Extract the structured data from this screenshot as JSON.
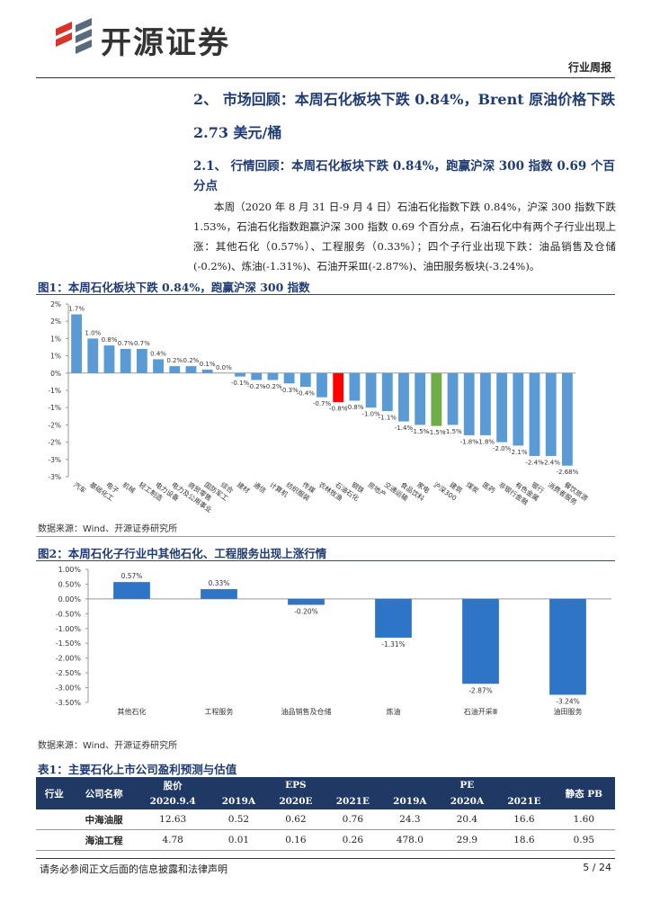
{
  "header": {
    "brand": "开源证券",
    "doc_type": "行业周报"
  },
  "section": {
    "heading": "2、 市场回顾：本周石化板块下跌 0.84%，Brent 原油价格下跌 2.73 美元/桶",
    "subheading": "2.1、 行情回顾：本周石化板块下跌 0.84%，跑赢沪深 300 指数 0.69 个百分点",
    "paragraph": "本周（2020 年 8 月 31 日-9 月 4 日）石油石化指数下跌 0.84%，沪深 300 指数下跌 1.53%，石油石化指数跑赢沪深 300 指数 0.69 个百分点，石油石化中有两个子行业出现上涨：其他石化（0.57%）、工程服务（0.33%）；四个子行业出现下跌：油品销售及仓储(-0.2%)、炼油(-1.31%)、石油开采Ⅲ(-2.87%)、油田服务板块(-3.24%)。"
  },
  "chart_data": [
    {
      "type": "bar",
      "title": "图1：本周石化板块下跌 0.84%，跑赢沪深 300 指数",
      "source": "数据来源：Wind、开源证券研究所",
      "categories": [
        "汽车",
        "基础化工",
        "电子",
        "机械",
        "轻工制造",
        "电力设备",
        "电力及公用事业",
        "商贸零售",
        "国防军工",
        "综合",
        "建材",
        "通信",
        "计算机",
        "纺织服装",
        "传媒",
        "农林牧渔",
        "石油石化",
        "钢铁",
        "房地产",
        "交通运输",
        "食品饮料",
        "家电",
        "沪深300",
        "建筑",
        "煤炭",
        "医药",
        "非银行金融",
        "有色金属",
        "银行",
        "消费者服务",
        "餐饮旅游"
      ],
      "values": [
        1.7,
        1.0,
        0.8,
        0.7,
        0.7,
        0.4,
        0.2,
        0.2,
        0.1,
        0.0,
        -0.1,
        -0.2,
        -0.2,
        -0.3,
        -0.4,
        -0.7,
        -0.84,
        -0.8,
        -1.0,
        -1.1,
        -1.4,
        -1.5,
        -1.53,
        -1.5,
        -1.8,
        -1.8,
        -2.0,
        -2.1,
        -2.4,
        -2.4,
        -2.68
      ],
      "value_labels": [
        "1.7%",
        "1.0%",
        "0.8%",
        "0.7%",
        "0.7%",
        "0.4%",
        "0.2%",
        "0.2%",
        "0.1%",
        "0.0%",
        "-0.1%",
        "-0.2%",
        "-0.2%",
        "-0.3%",
        "-0.4%",
        "-0.7%",
        "-0.8%",
        "-0.8%",
        "-1.0%",
        "-1.1%",
        "-1.4%",
        "-1.5%",
        "-1.5%",
        "-1.5%",
        "-1.8%",
        "-1.8%",
        "-2.0%",
        "-2.1%",
        "-2.4%",
        "-2.4%",
        "-2.68%"
      ],
      "colors": [
        "#5b9bd5",
        "#5b9bd5",
        "#5b9bd5",
        "#5b9bd5",
        "#5b9bd5",
        "#5b9bd5",
        "#5b9bd5",
        "#5b9bd5",
        "#5b9bd5",
        "#5b9bd5",
        "#5b9bd5",
        "#5b9bd5",
        "#5b9bd5",
        "#5b9bd5",
        "#5b9bd5",
        "#5b9bd5",
        "#ff0000",
        "#5b9bd5",
        "#5b9bd5",
        "#5b9bd5",
        "#5b9bd5",
        "#5b9bd5",
        "#70ad47",
        "#5b9bd5",
        "#5b9bd5",
        "#5b9bd5",
        "#5b9bd5",
        "#5b9bd5",
        "#5b9bd5",
        "#5b9bd5",
        "#5b9bd5"
      ],
      "ylim": [
        -3,
        2
      ],
      "yticks": [
        {
          "value": 2,
          "label": "2%"
        },
        {
          "value": 1.5,
          "label": "2%"
        },
        {
          "value": 1,
          "label": "1%"
        },
        {
          "value": 0.5,
          "label": "1%"
        },
        {
          "value": 0,
          "label": "0%"
        },
        {
          "value": -0.5,
          "label": "-1%"
        },
        {
          "value": -1,
          "label": "-1%"
        },
        {
          "value": -1.5,
          "label": "-2%"
        },
        {
          "value": -2,
          "label": "-2%"
        },
        {
          "value": -2.5,
          "label": "-3%"
        },
        {
          "value": -3,
          "label": "-3%"
        }
      ],
      "grid": false
    },
    {
      "type": "bar",
      "title": "图2：本周石化子行业中其他石化、工程服务出现上涨行情",
      "source": "数据来源：Wind、开源证券研究所",
      "categories": [
        "其他石化",
        "工程服务",
        "油品销售及仓储",
        "炼油",
        "石油开采Ⅲ",
        "油田服务"
      ],
      "values": [
        0.57,
        0.33,
        -0.2,
        -1.31,
        -2.87,
        -3.24
      ],
      "value_labels": [
        "0.57%",
        "0.33%",
        "-0.20%",
        "-1.31%",
        "-2.87%",
        "-3.24%"
      ],
      "color": "#2e75c8",
      "ylim": [
        -3.5,
        1
      ],
      "yticks": [
        {
          "value": 1,
          "label": "1.00%"
        },
        {
          "value": 0.5,
          "label": "0.50%"
        },
        {
          "value": 0,
          "label": "0.00%"
        },
        {
          "value": -0.5,
          "label": "-0.50%"
        },
        {
          "value": -1,
          "label": "-1.00%"
        },
        {
          "value": -1.5,
          "label": "-1.50%"
        },
        {
          "value": -2,
          "label": "-2.00%"
        },
        {
          "value": -2.5,
          "label": "-2.50%"
        },
        {
          "value": -3,
          "label": "-3.00%"
        },
        {
          "value": -3.5,
          "label": "-3.50%"
        }
      ],
      "grid": false
    }
  ],
  "table": {
    "title": "表1：主要石化上市公司盈利预测与估值",
    "header": [
      "行业",
      "公司名称",
      "股价",
      "EPS",
      "PE",
      "静态 PB"
    ],
    "subheader": [
      "2020.9.4",
      "2019A",
      "2020E",
      "2021E",
      "2019A",
      "2020A",
      "2021E"
    ],
    "rows": [
      [
        "中海油服",
        "12.63",
        "0.52",
        "0.62",
        "0.76",
        "24.3",
        "20.4",
        "16.6",
        "1.60"
      ],
      [
        "海油工程",
        "4.78",
        "0.01",
        "0.16",
        "0.26",
        "478.0",
        "29.9",
        "18.6",
        "0.95"
      ]
    ]
  },
  "footer": {
    "disclaimer": "请务必参阅正文后面的信息披露和法律声明",
    "page": "5 / 24"
  }
}
